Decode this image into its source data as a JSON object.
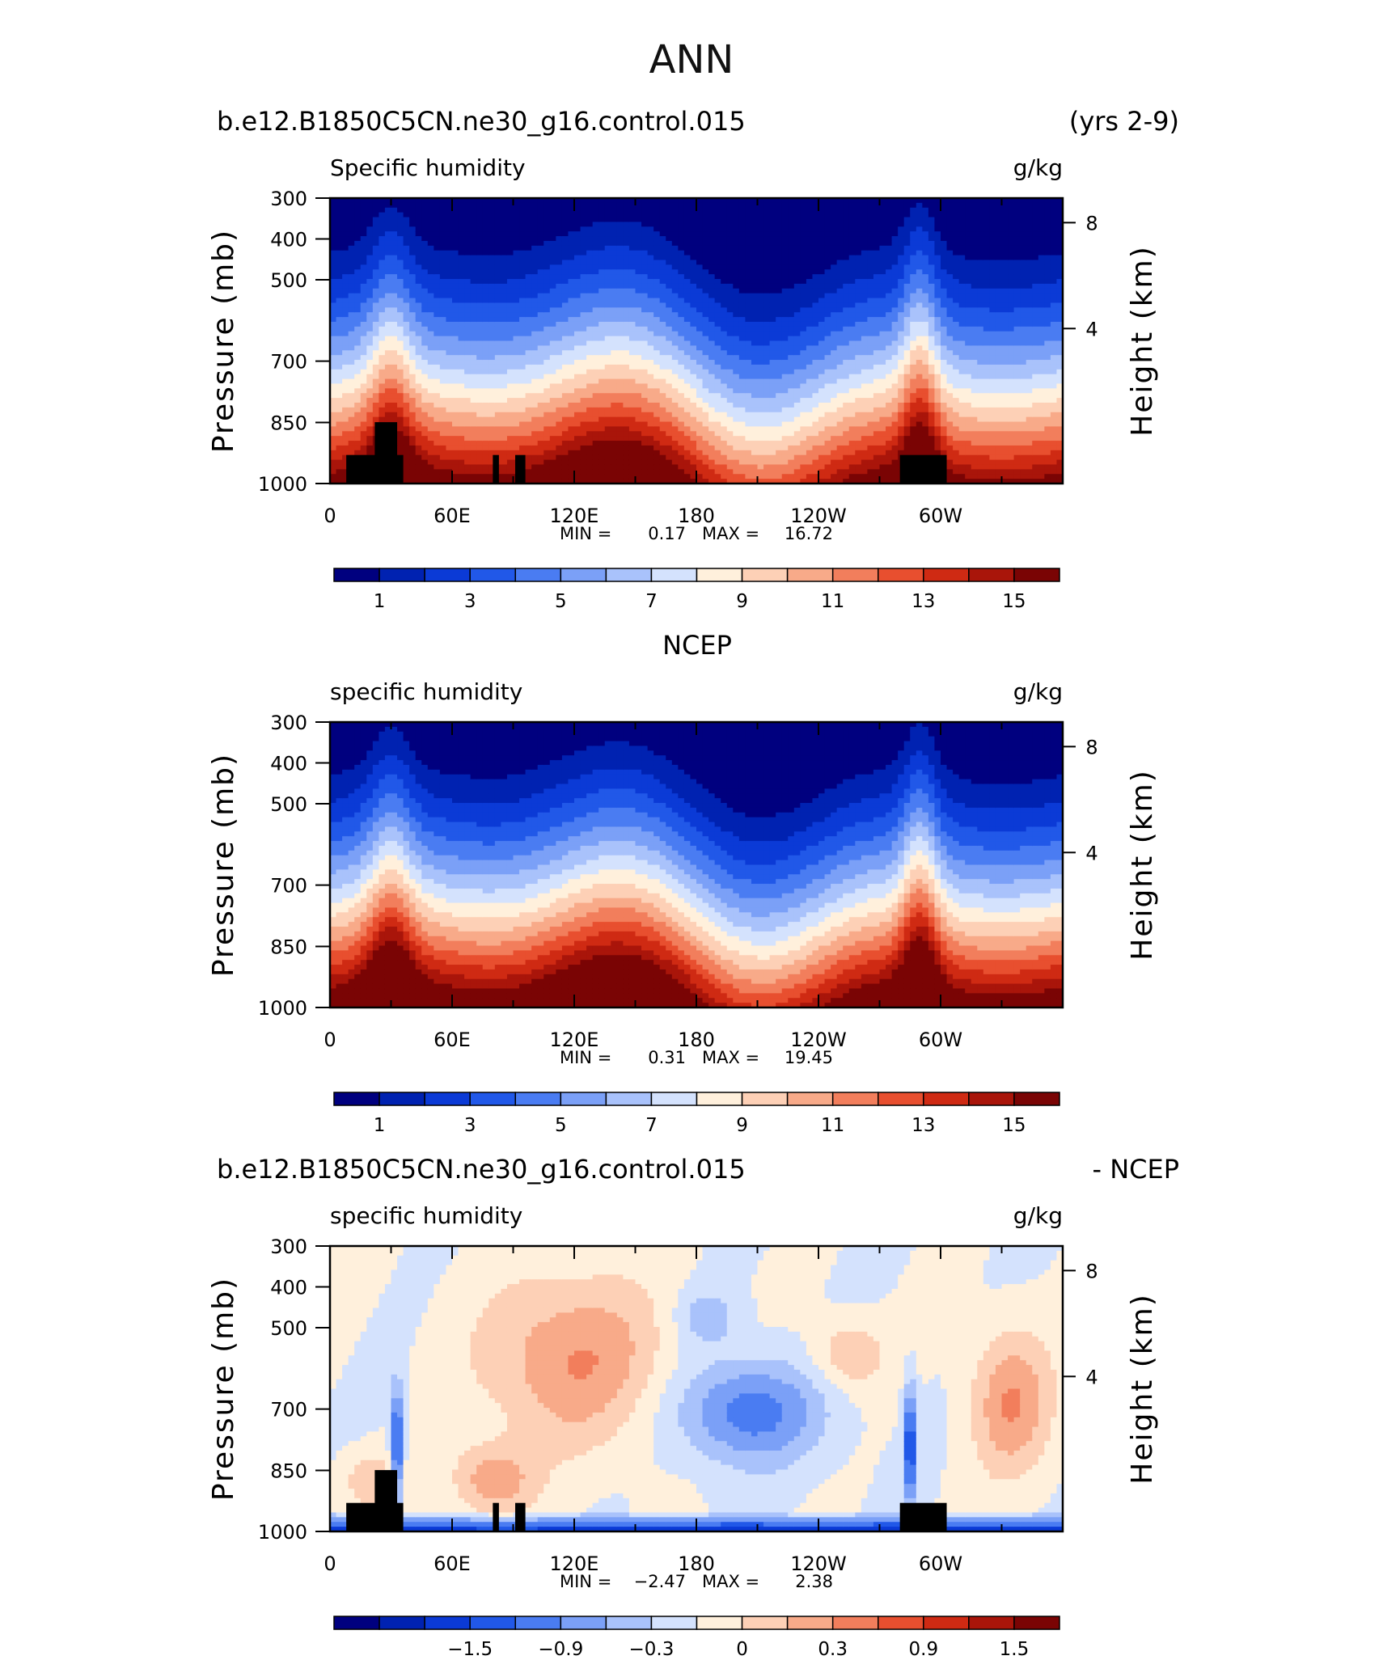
{
  "page_title": "ANN",
  "colors": {
    "model_obs_scale": [
      "#00007f",
      "#0022b1",
      "#0b3ad6",
      "#2158e8",
      "#4a7cf2",
      "#7ba0f7",
      "#a9c2fb",
      "#d4e2fd",
      "#fff0dc",
      "#fdd0b6",
      "#f8aa89",
      "#f27e5c",
      "#e84f2f",
      "#cf2a13",
      "#a9150a",
      "#7a0404"
    ],
    "diff_scale": [
      "#00007f",
      "#0022b1",
      "#0b3ad6",
      "#2158e8",
      "#4a7cf2",
      "#7ba0f7",
      "#a9c2fb",
      "#d4e2fd",
      "#fff0dc",
      "#fdd0b6",
      "#f8aa89",
      "#f27e5c",
      "#e84f2f",
      "#cf2a13",
      "#a9150a",
      "#7a0404"
    ],
    "land": "#000000"
  },
  "chart_data": [
    {
      "type": "heatmap",
      "panel_title_left": "b.e12.B1850C5CN.ne30_g16.control.015",
      "panel_title_right": "(yrs 2-9)",
      "variable_label": "Specific humidity",
      "units": "g/kg",
      "ylabel": "Pressure (mb)",
      "ylabel_right": "Height (km)",
      "y_ticks": [
        "300",
        "400",
        "500",
        "700",
        "850",
        "1000"
      ],
      "y_right_ticks": [
        "8",
        "4"
      ],
      "x_ticks": [
        "0",
        "60E",
        "120E",
        "180",
        "120W",
        "60W"
      ],
      "stats": {
        "min_label": "MIN =",
        "min": "0.17",
        "max_label": "MAX =",
        "max": "16.72"
      },
      "colorbar_ticks": [
        "1",
        "3",
        "5",
        "7",
        "9",
        "11",
        "13",
        "15"
      ],
      "ylim": [
        1000,
        300
      ],
      "xlim": [
        0,
        360
      ]
    },
    {
      "type": "heatmap",
      "panel_title_center": "NCEP",
      "variable_label": "specific humidity",
      "units": "g/kg",
      "ylabel": "Pressure (mb)",
      "ylabel_right": "Height (km)",
      "y_ticks": [
        "300",
        "400",
        "500",
        "700",
        "850",
        "1000"
      ],
      "y_right_ticks": [
        "8",
        "4"
      ],
      "x_ticks": [
        "0",
        "60E",
        "120E",
        "180",
        "120W",
        "60W"
      ],
      "stats": {
        "min_label": "MIN =",
        "min": "0.31",
        "max_label": "MAX =",
        "max": "19.45"
      },
      "colorbar_ticks": [
        "1",
        "3",
        "5",
        "7",
        "9",
        "11",
        "13",
        "15"
      ],
      "ylim": [
        1000,
        300
      ],
      "xlim": [
        0,
        360
      ]
    },
    {
      "type": "heatmap",
      "panel_title_left": "b.e12.B1850C5CN.ne30_g16.control.015",
      "panel_title_right": "- NCEP",
      "variable_label": "specific humidity",
      "units": "g/kg",
      "ylabel": "Pressure (mb)",
      "ylabel_right": "Height (km)",
      "y_ticks": [
        "300",
        "400",
        "500",
        "700",
        "850",
        "1000"
      ],
      "y_right_ticks": [
        "8",
        "4"
      ],
      "x_ticks": [
        "0",
        "60E",
        "120E",
        "180",
        "120W",
        "60W"
      ],
      "stats": {
        "min_label": "MIN =",
        "min": "−2.47",
        "max_label": "MAX =",
        "max": "2.38"
      },
      "colorbar_ticks": [
        "−1.5",
        "−0.9",
        "−0.3",
        "0",
        "0.3",
        "0.9",
        "1.5"
      ],
      "ylim": [
        1000,
        300
      ],
      "xlim": [
        0,
        360
      ]
    }
  ]
}
